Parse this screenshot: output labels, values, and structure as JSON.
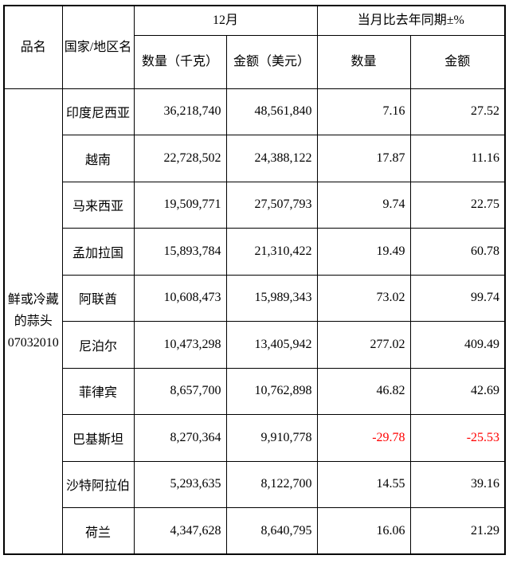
{
  "table": {
    "header": {
      "product_col": "品名",
      "country_col": "国家/地区名",
      "month_group": "12月",
      "yoy_group": "当月比去年同期±%",
      "qty_kg": "数量（千克）",
      "amt_usd": "金额（美元）",
      "qty": "数量",
      "amt": "金额"
    },
    "product": {
      "name": "鲜或冷藏的蒜头",
      "code": "07032010"
    },
    "rows": [
      {
        "country": "印度尼西亚",
        "qty": "36,218,740",
        "amt": "48,561,840",
        "qty_yoy": "7.16",
        "amt_yoy": "27.52"
      },
      {
        "country": "越南",
        "qty": "22,728,502",
        "amt": "24,388,122",
        "qty_yoy": "17.87",
        "amt_yoy": "11.16"
      },
      {
        "country": "马来西亚",
        "qty": "19,509,771",
        "amt": "27,507,793",
        "qty_yoy": "9.74",
        "amt_yoy": "22.75"
      },
      {
        "country": "孟加拉国",
        "qty": "15,893,784",
        "amt": "21,310,422",
        "qty_yoy": "19.49",
        "amt_yoy": "60.78"
      },
      {
        "country": "阿联酋",
        "qty": "10,608,473",
        "amt": "15,989,343",
        "qty_yoy": "73.02",
        "amt_yoy": "99.74"
      },
      {
        "country": "尼泊尔",
        "qty": "10,473,298",
        "amt": "13,405,942",
        "qty_yoy": "277.02",
        "amt_yoy": "409.49"
      },
      {
        "country": "菲律宾",
        "qty": "8,657,700",
        "amt": "10,762,898",
        "qty_yoy": "46.82",
        "amt_yoy": "42.69"
      },
      {
        "country": "巴基斯坦",
        "qty": "8,270,364",
        "amt": "9,910,778",
        "qty_yoy": "-29.78",
        "amt_yoy": "-25.53"
      },
      {
        "country": "沙特阿拉伯",
        "qty": "5,293,635",
        "amt": "8,122,700",
        "qty_yoy": "14.55",
        "amt_yoy": "39.16"
      },
      {
        "country": "荷兰",
        "qty": "4,347,628",
        "amt": "8,640,795",
        "qty_yoy": "16.06",
        "amt_yoy": "21.29"
      }
    ],
    "colors": {
      "text": "#000000",
      "negative": "#ff0000",
      "border": "#000000",
      "background": "#ffffff"
    }
  }
}
